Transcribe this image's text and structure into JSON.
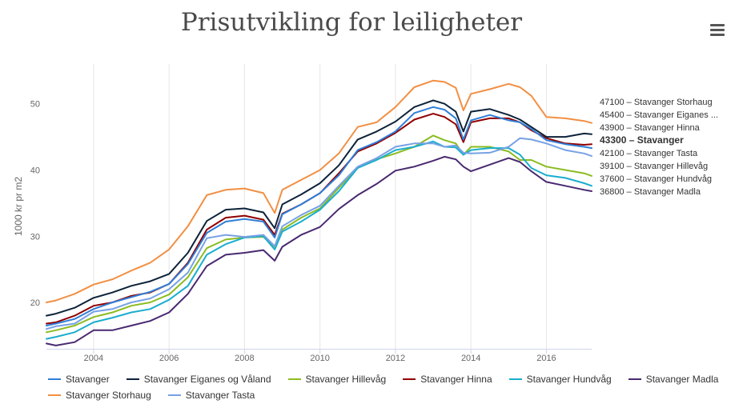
{
  "chart_data": {
    "type": "line",
    "title": "Prisutvikling for leiligheter",
    "ylabel": "1000 kr pr m2",
    "xlabel": "",
    "ylim": [
      13,
      56
    ],
    "xlim": [
      2002.75,
      2017.2
    ],
    "yticks": [
      20,
      30,
      40,
      50
    ],
    "xticks": [
      "2004",
      "2006",
      "2008",
      "2010",
      "2012",
      "2014",
      "2016"
    ],
    "grid": "vertical",
    "legend_position": "bottom",
    "x": [
      2002.75,
      2003,
      2003.5,
      2004,
      2004.5,
      2005,
      2005.5,
      2006,
      2006.5,
      2007,
      2007.5,
      2008,
      2008.5,
      2008.8,
      2009,
      2009.5,
      2010,
      2010.5,
      2011,
      2011.5,
      2012,
      2012.5,
      2013,
      2013.3,
      2013.6,
      2013.8,
      2014,
      2014.5,
      2015,
      2015.3,
      2015.6,
      2016,
      2016.5,
      2017,
      2017.2
    ],
    "series": [
      {
        "name": "Stavanger",
        "color": "#2f7ed8",
        "end_label": "43300 – Stavanger",
        "values": [
          16.5,
          16.8,
          17.5,
          19,
          20,
          20.8,
          21.6,
          22.8,
          25.8,
          30.5,
          32.2,
          32.6,
          32.2,
          29.8,
          33.3,
          34.8,
          36.5,
          39.2,
          43,
          44.2,
          45.8,
          48.6,
          49.5,
          49.1,
          47.8,
          44.6,
          47.5,
          48.3,
          47.5,
          47.2,
          46.2,
          44.5,
          43.9,
          43.5,
          43.3
        ]
      },
      {
        "name": "Stavanger Eiganes og Våland",
        "color": "#0d233a",
        "end_label": "45400 – Stavanger Eiganes ...",
        "values": [
          18,
          18.3,
          19.2,
          20.7,
          21.5,
          22.5,
          23.2,
          24.3,
          27.5,
          32.3,
          34,
          34.2,
          33.6,
          31.2,
          34.8,
          36.3,
          38,
          40.7,
          44.6,
          45.8,
          47.3,
          49.5,
          50.5,
          50,
          48.8,
          45.8,
          48.8,
          49.2,
          48.3,
          47.6,
          46.5,
          45,
          45,
          45.5,
          45.4
        ]
      },
      {
        "name": "Stavanger Hillevåg",
        "color": "#8bbc21",
        "end_label": "39100 – Stavanger Hillevåg",
        "values": [
          15.5,
          15.8,
          16.5,
          17.8,
          18.5,
          19.5,
          20,
          21.2,
          23.8,
          28.2,
          29.5,
          29.8,
          29.9,
          28.4,
          31,
          32.8,
          34.2,
          37.3,
          40.3,
          41.6,
          42.5,
          43.5,
          45.2,
          44.5,
          44,
          42.3,
          43.5,
          43.5,
          42.8,
          41.5,
          41.5,
          40.5,
          40,
          39.5,
          39.1
        ]
      },
      {
        "name": "Stavanger Hinna",
        "color": "#910000",
        "end_label": "43900 – Stavanger Hinna",
        "values": [
          16.8,
          17,
          18,
          19.5,
          20,
          21,
          21.5,
          22.8,
          26,
          31,
          32.8,
          33.1,
          32.5,
          30.2,
          33.4,
          34.8,
          36.5,
          39.5,
          42.8,
          44,
          45.6,
          47.6,
          48.5,
          48,
          46.9,
          44.2,
          47.2,
          47.8,
          47.8,
          47.2,
          46,
          44.8,
          44,
          43.8,
          43.9
        ]
      },
      {
        "name": "Stavanger Hundvåg",
        "color": "#1aadce",
        "end_label": "37600 – Stavanger Hundvåg",
        "values": [
          14.5,
          14.8,
          15.5,
          17,
          17.7,
          18.5,
          19,
          20.4,
          22.5,
          27.2,
          28.8,
          29.8,
          30,
          28,
          30.7,
          32.2,
          34,
          36.8,
          40.3,
          41.5,
          43,
          43.5,
          44.3,
          43.5,
          43.4,
          42.3,
          43,
          43.3,
          43.3,
          42.3,
          40.3,
          39.2,
          38.8,
          38,
          37.6
        ]
      },
      {
        "name": "Stavanger Madla",
        "color": "#492970",
        "end_label": "36800 – Stavanger Madla",
        "values": [
          13.8,
          13.5,
          14,
          15.8,
          15.8,
          16.5,
          17.2,
          18.5,
          21.3,
          25.5,
          27.2,
          27.5,
          27.9,
          26.3,
          28.4,
          30.2,
          31.4,
          34.1,
          36.2,
          37.9,
          39.9,
          40.5,
          41.4,
          42,
          41.6,
          40.5,
          39.8,
          40.8,
          41.8,
          41.2,
          39.8,
          38.2,
          37.6,
          37,
          36.8
        ]
      },
      {
        "name": "Stavanger Storhaug",
        "color": "#f28f43",
        "end_label": "47100 – Stavanger Storhaug",
        "values": [
          20,
          20.3,
          21.3,
          22.7,
          23.5,
          24.8,
          26,
          28,
          31.5,
          36.2,
          37,
          37.2,
          36.5,
          33.5,
          37,
          38.5,
          40,
          42.5,
          46.5,
          47.2,
          49.5,
          52.5,
          53.5,
          53.3,
          52.4,
          49,
          51.5,
          52.2,
          53,
          52.5,
          51.2,
          48,
          47.8,
          47.4,
          47.1
        ]
      },
      {
        "name": "Stavanger Tasta",
        "color": "#77a1e5",
        "end_label": "42100 – Stavanger Tasta",
        "values": [
          16,
          16.4,
          16.8,
          18.6,
          19,
          20,
          20.6,
          22,
          24.5,
          29.7,
          30.2,
          29.9,
          30.2,
          28.5,
          31.5,
          33.2,
          34.6,
          37.6,
          40.5,
          41.8,
          43.5,
          44,
          44,
          43.5,
          43.7,
          42.6,
          42.5,
          42.6,
          43.5,
          44.8,
          44.6,
          44,
          43,
          42.5,
          42.1
        ]
      }
    ]
  },
  "header": {
    "title": "Prisutvikling for leiligheter",
    "menu_icon": "hamburger-menu-icon"
  }
}
